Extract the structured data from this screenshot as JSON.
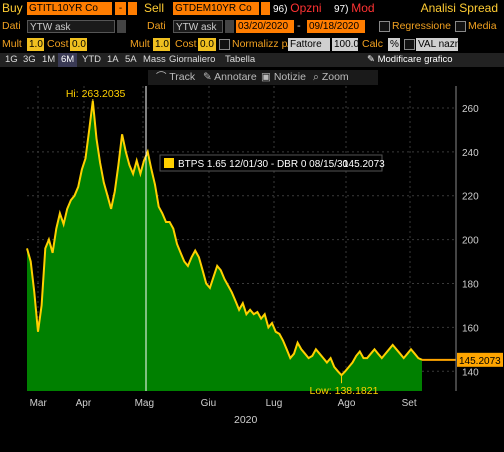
{
  "row1": {
    "buy_label": "Buy",
    "buy_ticker": "GTITL10YR Co",
    "dash1": "-",
    "sell_label": "Sell",
    "sell_ticker": "GTDEM10YR Co",
    "opzni_num": "96)",
    "opzni_label": "Opzni",
    "mod_num": "97)",
    "mod_label": "Mod",
    "analysis": "Analisi Spread"
  },
  "row2": {
    "dati_label": "Dati",
    "dati_value": "YTW ask",
    "dati2_label": "Dati",
    "dati2_value": "YTW ask",
    "start_date": "03/20/2020",
    "date_sep": "-",
    "end_date": "09/18/2020",
    "regression": "Regressione",
    "media": "Media"
  },
  "row3": {
    "mult_label": "Mult",
    "mult_value": "1.0",
    "cost_label": "Cost",
    "cost_value": "0.0",
    "mult2_label": "Mult",
    "mult2_value": "1.0",
    "cost2_label": "Cost",
    "cost2_value": "0.0",
    "normalize": "Normalizz p/",
    "factor": "Fattore",
    "factor_value": "100.0",
    "calc": "Calc",
    "calc_value": "%",
    "currency": "VAL nazni"
  },
  "tabs": [
    "1G",
    "3G",
    "1M",
    "6M",
    "YTD",
    "1A",
    "5A",
    "Mass",
    "Giornaliero",
    "Tabella",
    "Modificare grafico"
  ],
  "active_tab": "6M",
  "subtools": {
    "track": "Track",
    "annotate": "Annotare",
    "news": "Notizie",
    "zoom": "Zoom"
  },
  "legend": {
    "label": "BTPS 1.65 12/01/30 - DBR 0 08/15/30",
    "value": "145.2073"
  },
  "chart_data": {
    "type": "area",
    "x_start": "2020-03-20",
    "x_end": "2020-09-18",
    "xlabel": "2020",
    "x_tick_labels": [
      "Mar",
      "Apr",
      "Mag",
      "Giu",
      "Lug",
      "Ago",
      "Set"
    ],
    "y_ticks": [
      140,
      160,
      180,
      200,
      220,
      240,
      260
    ],
    "ylim": [
      131,
      270
    ],
    "grid": true,
    "color_fill": "#008000",
    "color_line": "#ffd000",
    "current_value": 145.2073,
    "current_label": "145.2073",
    "high": {
      "label": "Hi: 263.2035",
      "value": 263.2035
    },
    "low": {
      "label": "Low: 138.1821",
      "value": 138.1821
    },
    "series": [
      {
        "values": [
          196,
          190,
          176,
          158,
          170,
          196,
          200,
          194,
          205,
          212,
          207,
          214,
          218,
          220,
          224,
          232,
          237,
          250,
          263.2,
          246,
          235,
          226,
          220,
          214,
          222,
          234,
          248,
          240,
          234,
          230,
          236,
          230,
          236,
          240,
          232,
          225,
          215,
          212,
          208,
          208,
          205,
          198,
          194,
          190,
          188,
          192,
          195,
          192,
          186,
          180,
          178,
          183,
          188,
          186,
          182,
          179,
          176,
          172,
          168,
          171,
          166,
          168,
          166,
          167,
          164,
          166,
          160,
          162,
          158,
          157,
          154,
          150,
          146,
          148,
          153,
          150,
          148,
          146,
          147,
          150,
          148,
          146,
          144,
          146,
          142,
          140,
          138.2,
          140,
          142,
          144,
          147,
          149,
          146,
          146,
          148,
          150,
          148,
          146,
          148,
          150,
          152,
          150,
          148,
          146,
          148,
          150,
          148,
          146,
          145.2
        ]
      }
    ]
  }
}
